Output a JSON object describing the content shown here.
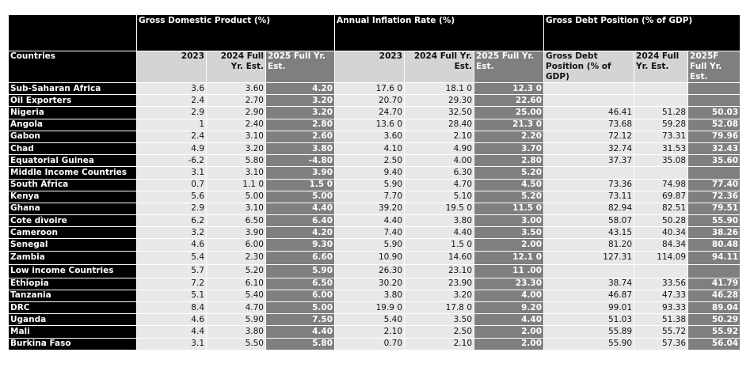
{
  "table": {
    "group_headers": [
      "Gross Domestic Product (%)",
      "Annual Inflation Rate (%)",
      "Gross Debt Position (% of GDP)"
    ],
    "column_headers": [
      "Countries",
      "2023",
      "2024 Full Yr. Est.",
      "2025 Full Yr. Est.",
      "2023",
      "2024 Full Yr. Est.",
      "2025 Full Yr. Est.",
      "Gross Debt Position (% of GDP)",
      "2024 Full Yr. Est.",
      "2025F Full Yr. Est."
    ],
    "rows": [
      [
        "Sub-Saharan Africa",
        "3.6",
        "3.60",
        "4.20",
        "17.6 0",
        "18.1 0",
        "12.3 0",
        null,
        null,
        null
      ],
      [
        "Oil Exporters",
        "2.4",
        "2.70",
        "3.20",
        "20.70",
        "29.30",
        "22.60",
        null,
        null,
        null
      ],
      [
        "Nigeria",
        "2.9",
        "2.90",
        "3.20",
        "24.70",
        "32.50",
        "25.00",
        "46.41",
        "51.28",
        "50.03"
      ],
      [
        "Angola",
        "1",
        "2.40",
        "2.80",
        "13.6 0",
        "28.40",
        "21.3 0",
        "73.68",
        "59.28",
        "52.08"
      ],
      [
        "Gabon",
        "2.4",
        "3.10",
        "2.60",
        "3.60",
        "2.10",
        "2.20",
        "72.12",
        "73.31",
        "79.96"
      ],
      [
        "Chad",
        "4.9",
        "3.20",
        "3.80",
        "4.10",
        "4.90",
        "3.70",
        "32.74",
        "31.53",
        "32.43"
      ],
      [
        "Equatorial Guinea",
        "-6.2",
        "5.80",
        "-4.80",
        "2.50",
        "4.00",
        "2.80",
        "37.37",
        "35.08",
        "35.60"
      ],
      [
        "Middle Income Countries",
        "3.1",
        "3.10",
        "3.90",
        "9.40",
        "6.30",
        "5.20",
        null,
        null,
        null
      ],
      [
        "South Africa",
        "0.7",
        "1.1 0",
        "1.5 0",
        "5.90",
        "4.70",
        "4.50",
        "73.36",
        "74.98",
        "77.40"
      ],
      [
        "Kenya",
        "5.6",
        "5.00",
        "5.00",
        "7.70",
        "5.10",
        "5.20",
        "73.11",
        "69.87",
        "72.36"
      ],
      [
        "Ghana",
        "2.9",
        "3.10",
        "4.40",
        "39.20",
        "19.5 0",
        "11.5 0",
        "82.94",
        "82.51",
        "79.51"
      ],
      [
        "Cote dìvoire",
        "6.2",
        "6.50",
        "6.40",
        "4.40",
        "3.80",
        "3.00",
        "58.07",
        "50.28",
        "55.90"
      ],
      [
        "Cameroon",
        "3.2",
        "3.90",
        "4.20",
        "7.40",
        "4.40",
        "3.50",
        "43.15",
        "40.34",
        "38.26"
      ],
      [
        "Senegal",
        "4.6",
        "6.00",
        "9.30",
        "5.90",
        "1.5 0",
        "2.00",
        "81.20",
        "84.34",
        "80.48"
      ],
      [
        "Zambia",
        "5.4",
        "2.30",
        "6.60",
        "10.90",
        "14.60",
        "12.1 0",
        "127.31",
        "114.09",
        "94.11"
      ],
      [
        "Low income Countries",
        "5.7",
        "5.20",
        "5.90",
        "26.30",
        "23.10",
        "11 .00",
        null,
        null,
        null
      ],
      [
        "Ethiopia",
        "7.2",
        "6.10",
        "6.50",
        "30.20",
        "23.90",
        "23.30",
        "38.74",
        "33.56",
        "41.79"
      ],
      [
        "Tanzania",
        "5.1",
        "5.40",
        "6.00",
        "3.80",
        "3.20",
        "4.00",
        "46.87",
        "47.33",
        "46.28"
      ],
      [
        "DRC",
        "8.4",
        "4.70",
        "5.00",
        "19.9 0",
        "17.8 0",
        "9.20",
        "99.01",
        "93.33",
        "89.04"
      ],
      [
        "Uganda",
        "4.6",
        "5.90",
        "7.50",
        "5.40",
        "3.50",
        "4.40",
        "51.03",
        "51.38",
        "50.29"
      ],
      [
        "Mali",
        "4.4",
        "3.80",
        "4.40",
        "2.10",
        "2.50",
        "2.00",
        "55.89",
        "55.72",
        "55.92"
      ],
      [
        "Burkina Faso",
        "3.1",
        "5.50",
        "5.80",
        "0.70",
        "2.10",
        "2.00",
        "55.90",
        "57.36",
        "56.04"
      ]
    ]
  }
}
